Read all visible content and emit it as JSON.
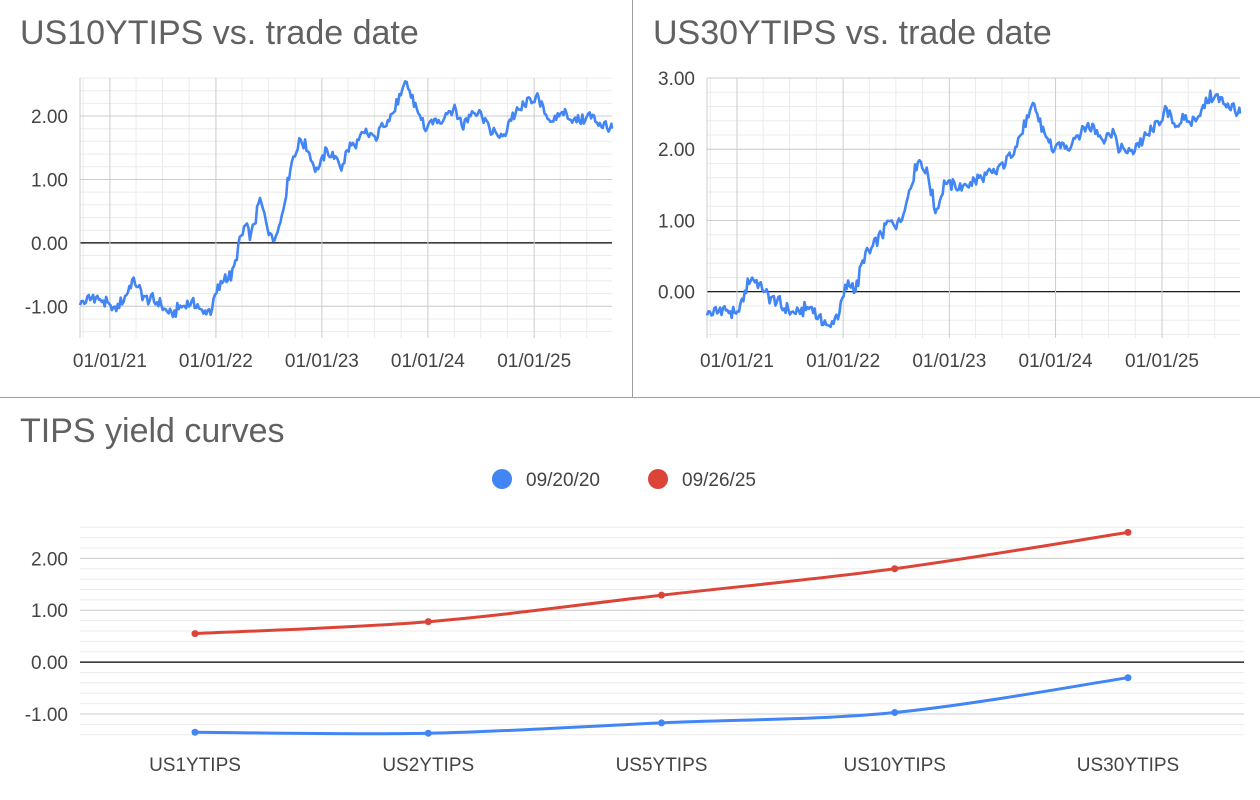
{
  "charts": {
    "us10": {
      "title": "US10YTIPS vs. trade date",
      "color": "#4285f4",
      "y_ticks": [
        "-1.00",
        "0.00",
        "1.00",
        "2.00"
      ],
      "x_ticks": [
        "01/01/21",
        "01/01/22",
        "01/01/23",
        "01/01/24",
        "01/01/25"
      ]
    },
    "us30": {
      "title": "US30YTIPS vs. trade date",
      "color": "#4285f4",
      "y_ticks": [
        "0.00",
        "1.00",
        "2.00",
        "3.00"
      ],
      "x_ticks": [
        "01/01/21",
        "01/01/22",
        "01/01/23",
        "01/01/24",
        "01/01/25"
      ]
    },
    "curves": {
      "title": "TIPS yield curves",
      "y_ticks": [
        "-1.00",
        "0.00",
        "1.00",
        "2.00"
      ],
      "legend": [
        "09/20/20",
        "09/26/25"
      ]
    }
  },
  "chart_data": [
    {
      "type": "line",
      "title": "US10YTIPS vs. trade date",
      "xlabel": "",
      "ylabel": "",
      "x_range": [
        "2020-09-20",
        "2025-09-26"
      ],
      "ylim": [
        -1.5,
        2.6
      ],
      "grid": true,
      "series": [
        {
          "x": [
            "2020-09-20",
            "2020-11-01",
            "2020-12-15",
            "2021-01-15",
            "2021-02-25",
            "2021-03-20",
            "2021-05-01",
            "2021-06-01",
            "2021-07-01",
            "2021-08-05",
            "2021-09-01",
            "2021-10-15",
            "2021-11-20",
            "2021-12-15",
            "2022-01-01",
            "2022-02-01",
            "2022-03-01",
            "2022-03-20",
            "2022-04-10",
            "2022-05-01",
            "2022-06-01",
            "2022-06-15",
            "2022-07-15",
            "2022-08-15",
            "2022-09-15",
            "2022-10-20",
            "2022-11-15",
            "2022-12-15",
            "2023-01-15",
            "2023-02-15",
            "2023-03-10",
            "2023-04-01",
            "2023-05-01",
            "2023-06-01",
            "2023-07-01",
            "2023-08-01",
            "2023-09-01",
            "2023-10-20",
            "2023-11-15",
            "2023-12-27",
            "2024-01-15",
            "2024-02-15",
            "2024-04-01",
            "2024-05-01",
            "2024-06-01",
            "2024-07-01",
            "2024-08-05",
            "2024-09-16",
            "2024-10-15",
            "2024-11-15",
            "2024-12-15",
            "2025-01-10",
            "2025-02-15",
            "2025-03-15",
            "2025-04-08",
            "2025-05-15",
            "2025-06-15",
            "2025-07-15",
            "2025-08-15",
            "2025-09-26"
          ],
          "y": [
            -0.95,
            -0.85,
            -0.95,
            -1.05,
            -0.85,
            -0.6,
            -0.85,
            -0.9,
            -1.0,
            -1.15,
            -1.0,
            -0.95,
            -1.1,
            -1.05,
            -0.8,
            -0.55,
            -0.5,
            -0.05,
            0.25,
            0.1,
            0.65,
            0.5,
            0.0,
            0.4,
            1.2,
            1.65,
            1.45,
            1.15,
            1.45,
            1.35,
            1.2,
            1.5,
            1.55,
            1.75,
            1.65,
            1.9,
            2.05,
            2.5,
            2.2,
            1.75,
            1.9,
            1.95,
            2.15,
            1.85,
            2.1,
            2.05,
            1.75,
            1.65,
            2.0,
            2.1,
            2.25,
            2.3,
            2.0,
            1.9,
            2.1,
            1.95,
            1.95,
            2.0,
            1.9,
            1.8
          ]
        }
      ]
    },
    {
      "type": "line",
      "title": "US30YTIPS vs. trade date",
      "xlabel": "",
      "ylabel": "",
      "x_range": [
        "2020-09-20",
        "2025-09-26"
      ],
      "ylim": [
        -0.65,
        3.0
      ],
      "grid": true,
      "series": [
        {
          "x": [
            "2020-09-20",
            "2020-11-15",
            "2020-12-30",
            "2021-02-15",
            "2021-03-15",
            "2021-04-15",
            "2021-05-15",
            "2021-06-15",
            "2021-08-01",
            "2021-09-15",
            "2021-10-01",
            "2021-11-15",
            "2021-12-15",
            "2022-01-15",
            "2022-02-15",
            "2022-03-15",
            "2022-04-15",
            "2022-05-01",
            "2022-06-15",
            "2022-07-15",
            "2022-08-15",
            "2022-09-15",
            "2022-10-20",
            "2022-11-15",
            "2022-12-15",
            "2023-01-15",
            "2023-02-15",
            "2023-03-15",
            "2023-05-01",
            "2023-06-15",
            "2023-08-01",
            "2023-10-20",
            "2023-11-15",
            "2023-12-27",
            "2024-01-15",
            "2024-02-15",
            "2024-04-15",
            "2024-05-15",
            "2024-06-15",
            "2024-07-15",
            "2024-08-05",
            "2024-09-16",
            "2024-10-15",
            "2024-11-15",
            "2024-12-15",
            "2025-01-15",
            "2025-02-15",
            "2025-03-15",
            "2025-04-15",
            "2025-05-15",
            "2025-06-15",
            "2025-07-15",
            "2025-08-15",
            "2025-09-26"
          ],
          "y": [
            -0.3,
            -0.25,
            -0.35,
            0.2,
            0.1,
            -0.05,
            -0.1,
            -0.25,
            -0.3,
            -0.2,
            -0.35,
            -0.5,
            -0.3,
            0.1,
            0.05,
            0.5,
            0.6,
            0.75,
            1.0,
            0.95,
            1.4,
            1.85,
            1.65,
            1.1,
            1.55,
            1.5,
            1.45,
            1.55,
            1.6,
            1.7,
            1.95,
            2.6,
            2.3,
            1.95,
            2.05,
            2.05,
            2.35,
            2.3,
            2.15,
            2.25,
            2.0,
            1.95,
            2.1,
            2.2,
            2.35,
            2.55,
            2.35,
            2.4,
            2.4,
            2.55,
            2.75,
            2.7,
            2.65,
            2.5
          ]
        }
      ]
    },
    {
      "type": "line",
      "title": "TIPS yield curves",
      "xlabel": "",
      "ylabel": "",
      "categories": [
        "US1YTIPS",
        "US2YTIPS",
        "US5YTIPS",
        "US10YTIPS",
        "US30YTIPS"
      ],
      "ylim": [
        -1.5,
        2.7
      ],
      "grid": true,
      "legend_position": "top",
      "series": [
        {
          "name": "09/20/20",
          "color": "#4285f4",
          "values": [
            -1.35,
            -1.37,
            -1.17,
            -0.97,
            -0.3
          ]
        },
        {
          "name": "09/26/25",
          "color": "#db4437",
          "values": [
            0.55,
            0.78,
            1.29,
            1.8,
            2.5
          ]
        }
      ]
    }
  ]
}
